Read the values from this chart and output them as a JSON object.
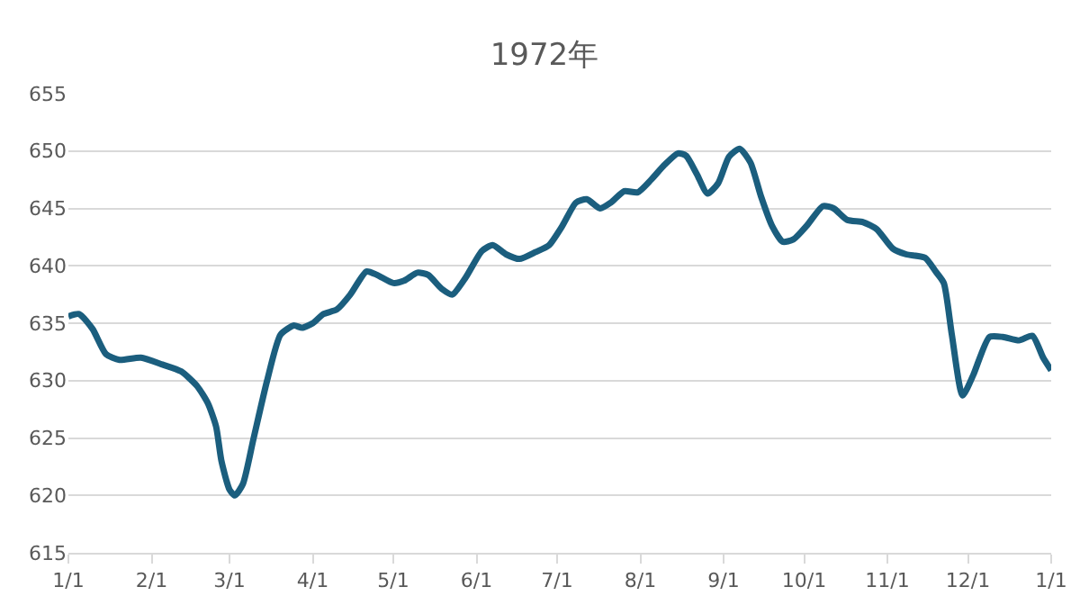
{
  "chart_data": {
    "type": "line",
    "title": "1972年",
    "x": [
      "1972-01-01",
      "1972-01-05",
      "1972-01-10",
      "1972-01-15",
      "1972-01-20",
      "1972-01-28",
      "1972-02-05",
      "1972-02-12",
      "1972-02-18",
      "1972-02-22",
      "1972-02-25",
      "1972-02-27",
      "1972-03-01",
      "1972-03-03",
      "1972-03-06",
      "1972-03-10",
      "1972-03-15",
      "1972-03-20",
      "1972-03-25",
      "1972-03-28",
      "1972-04-01",
      "1972-04-05",
      "1972-04-10",
      "1972-04-15",
      "1972-04-21",
      "1972-04-25",
      "1972-05-01",
      "1972-05-05",
      "1972-05-10",
      "1972-05-14",
      "1972-05-19",
      "1972-05-23",
      "1972-05-28",
      "1972-06-03",
      "1972-06-07",
      "1972-06-12",
      "1972-06-17",
      "1972-06-23",
      "1972-06-28",
      "1972-07-03",
      "1972-07-08",
      "1972-07-12",
      "1972-07-17",
      "1972-07-21",
      "1972-07-26",
      "1972-07-31",
      "1972-08-05",
      "1972-08-10",
      "1972-08-15",
      "1972-08-18",
      "1972-08-22",
      "1972-08-26",
      "1972-08-30",
      "1972-09-03",
      "1972-09-07",
      "1972-09-11",
      "1972-09-15",
      "1972-09-19",
      "1972-09-23",
      "1972-09-27",
      "1972-10-02",
      "1972-10-08",
      "1972-10-12",
      "1972-10-17",
      "1972-10-23",
      "1972-10-28",
      "1972-11-03",
      "1972-11-08",
      "1972-11-15",
      "1972-11-19",
      "1972-11-22",
      "1972-11-25",
      "1972-11-29",
      "1972-12-03",
      "1972-12-09",
      "1972-12-14",
      "1972-12-20",
      "1972-12-25",
      "1972-12-29",
      "1973-01-01"
    ],
    "series": [
      {
        "color": "#1b5e7e",
        "values": [
          635.6,
          635.8,
          634.5,
          632.3,
          631.8,
          632.0,
          631.4,
          630.8,
          629.5,
          628.0,
          626.0,
          623.0,
          620.5,
          620.0,
          621.0,
          625.0,
          630.0,
          634.0,
          634.8,
          634.6,
          635.0,
          635.8,
          636.2,
          637.5,
          639.5,
          639.2,
          638.5,
          638.7,
          639.4,
          639.2,
          638.0,
          637.5,
          639.0,
          641.3,
          641.8,
          641.0,
          640.6,
          641.2,
          641.8,
          643.5,
          645.5,
          645.8,
          645.0,
          645.5,
          646.5,
          646.4,
          647.5,
          648.8,
          649.8,
          649.6,
          648.0,
          646.3,
          647.2,
          649.5,
          650.2,
          649.0,
          646.0,
          643.5,
          642.1,
          642.3,
          643.5,
          645.2,
          645.0,
          644.0,
          643.8,
          643.2,
          641.5,
          641.0,
          640.7,
          639.5,
          638.5,
          634.0,
          628.7,
          630.5,
          633.8,
          633.8,
          633.5,
          633.9,
          632.0,
          630.9
        ]
      }
    ],
    "xlim": [
      "1972-01-01",
      "1973-01-01"
    ],
    "xticks": [
      {
        "value": "1972-01-01",
        "label": "1/1"
      },
      {
        "value": "1972-02-01",
        "label": "2/1"
      },
      {
        "value": "1972-03-01",
        "label": "3/1"
      },
      {
        "value": "1972-04-01",
        "label": "4/1"
      },
      {
        "value": "1972-05-01",
        "label": "5/1"
      },
      {
        "value": "1972-06-01",
        "label": "6/1"
      },
      {
        "value": "1972-07-01",
        "label": "7/1"
      },
      {
        "value": "1972-08-01",
        "label": "8/1"
      },
      {
        "value": "1972-09-01",
        "label": "9/1"
      },
      {
        "value": "1972-10-01",
        "label": "10/1"
      },
      {
        "value": "1972-11-01",
        "label": "11/1"
      },
      {
        "value": "1972-12-01",
        "label": "12/1"
      },
      {
        "value": "1973-01-01",
        "label": "1/1"
      }
    ],
    "ylim": [
      615,
      655
    ],
    "yticks": [
      615,
      620,
      625,
      630,
      635,
      640,
      645,
      650,
      655
    ],
    "grid": "y",
    "legend": false,
    "marker": "none",
    "line_style": "solid"
  }
}
